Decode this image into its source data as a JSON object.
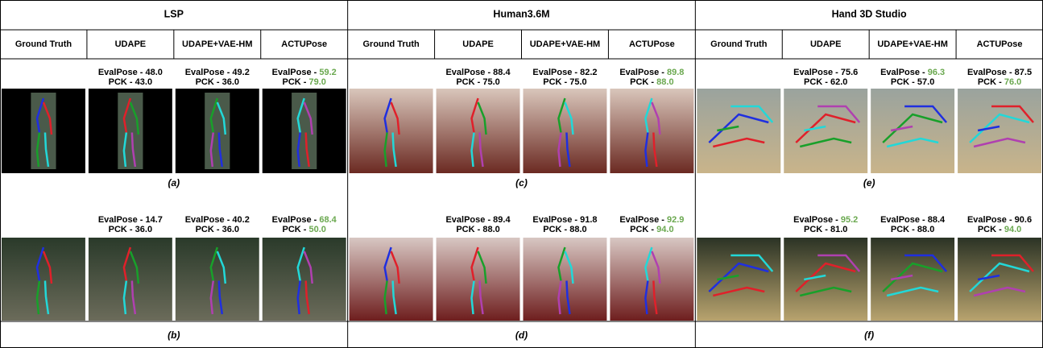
{
  "highlight_color": "#6aa84f",
  "sections": [
    {
      "title": "LSP",
      "columns": [
        "Ground Truth",
        "UDAPE",
        "UDAPE+VAE-HM",
        "ACTUPose"
      ],
      "rows": [
        {
          "caption": "(a)",
          "scores": [
            [
              {
                "label": "EvalPose - ",
                "value": "48.0",
                "highlight": false
              },
              {
                "label": "PCK - ",
                "value": "43.0",
                "highlight": false
              }
            ],
            [
              {
                "label": "EvalPose - ",
                "value": "49.2",
                "highlight": false
              },
              {
                "label": "PCK - ",
                "value": "36.0",
                "highlight": false
              }
            ],
            [
              {
                "label": "EvalPose - ",
                "value": "59.2",
                "highlight": true
              },
              {
                "label": "PCK - ",
                "value": "79.0",
                "highlight": true
              }
            ]
          ]
        },
        {
          "caption": "(b)",
          "scores": [
            [
              {
                "label": "EvalPose - ",
                "value": "14.7",
                "highlight": false
              },
              {
                "label": "PCK - ",
                "value": "36.0",
                "highlight": false
              }
            ],
            [
              {
                "label": "EvalPose - ",
                "value": "40.2",
                "highlight": false
              },
              {
                "label": "PCK - ",
                "value": "36.0",
                "highlight": false
              }
            ],
            [
              {
                "label": "EvalPose - ",
                "value": "68.4",
                "highlight": true
              },
              {
                "label": "PCK - ",
                "value": "50.0",
                "highlight": true
              }
            ]
          ]
        }
      ]
    },
    {
      "title": "Human3.6M",
      "columns": [
        "Ground Truth",
        "UDAPE",
        "UDAPE+VAE-HM",
        "ACTUPose"
      ],
      "rows": [
        {
          "caption": "(c)",
          "scores": [
            [
              {
                "label": "EvalPose - ",
                "value": "88.4",
                "highlight": false
              },
              {
                "label": "PCK - ",
                "value": "75.0",
                "highlight": false
              }
            ],
            [
              {
                "label": "EvalPose - ",
                "value": "82.2",
                "highlight": false
              },
              {
                "label": "PCK - ",
                "value": "75.0",
                "highlight": false
              }
            ],
            [
              {
                "label": "EvalPose - ",
                "value": "89.8",
                "highlight": true
              },
              {
                "label": "PCK - ",
                "value": "88.0",
                "highlight": true
              }
            ]
          ]
        },
        {
          "caption": "(d)",
          "scores": [
            [
              {
                "label": "EvalPose - ",
                "value": "89.4",
                "highlight": false
              },
              {
                "label": "PCK - ",
                "value": "88.0",
                "highlight": false
              }
            ],
            [
              {
                "label": "EvalPose - ",
                "value": "91.8",
                "highlight": false
              },
              {
                "label": "PCK - ",
                "value": "88.0",
                "highlight": false
              }
            ],
            [
              {
                "label": "EvalPose - ",
                "value": "92.9",
                "highlight": true
              },
              {
                "label": "PCK - ",
                "value": "94.0",
                "highlight": true
              }
            ]
          ]
        }
      ]
    },
    {
      "title": "Hand 3D Studio",
      "columns": [
        "Ground Truth",
        "UDAPE",
        "UDAPE+VAE-HM",
        "ACTUPose"
      ],
      "rows": [
        {
          "caption": "(e)",
          "scores": [
            [
              {
                "label": "EvalPose - ",
                "value": "75.6",
                "highlight": false
              },
              {
                "label": "PCK - ",
                "value": "62.0",
                "highlight": false
              }
            ],
            [
              {
                "label": "EvalPose - ",
                "value": "96.3",
                "highlight": true
              },
              {
                "label": "PCK - ",
                "value": "57.0",
                "highlight": false
              }
            ],
            [
              {
                "label": "EvalPose - ",
                "value": "87.5",
                "highlight": false
              },
              {
                "label": "PCK - ",
                "value": "76.0",
                "highlight": true
              }
            ]
          ]
        },
        {
          "caption": "(f)",
          "scores": [
            [
              {
                "label": "EvalPose - ",
                "value": "95.2",
                "highlight": true
              },
              {
                "label": "PCK - ",
                "value": "81.0",
                "highlight": false
              }
            ],
            [
              {
                "label": "EvalPose - ",
                "value": "88.4",
                "highlight": false
              },
              {
                "label": "PCK - ",
                "value": "88.0",
                "highlight": false
              }
            ],
            [
              {
                "label": "EvalPose - ",
                "value": "90.6",
                "highlight": false
              },
              {
                "label": "PCK - ",
                "value": "94.0",
                "highlight": true
              }
            ]
          ]
        }
      ]
    }
  ]
}
